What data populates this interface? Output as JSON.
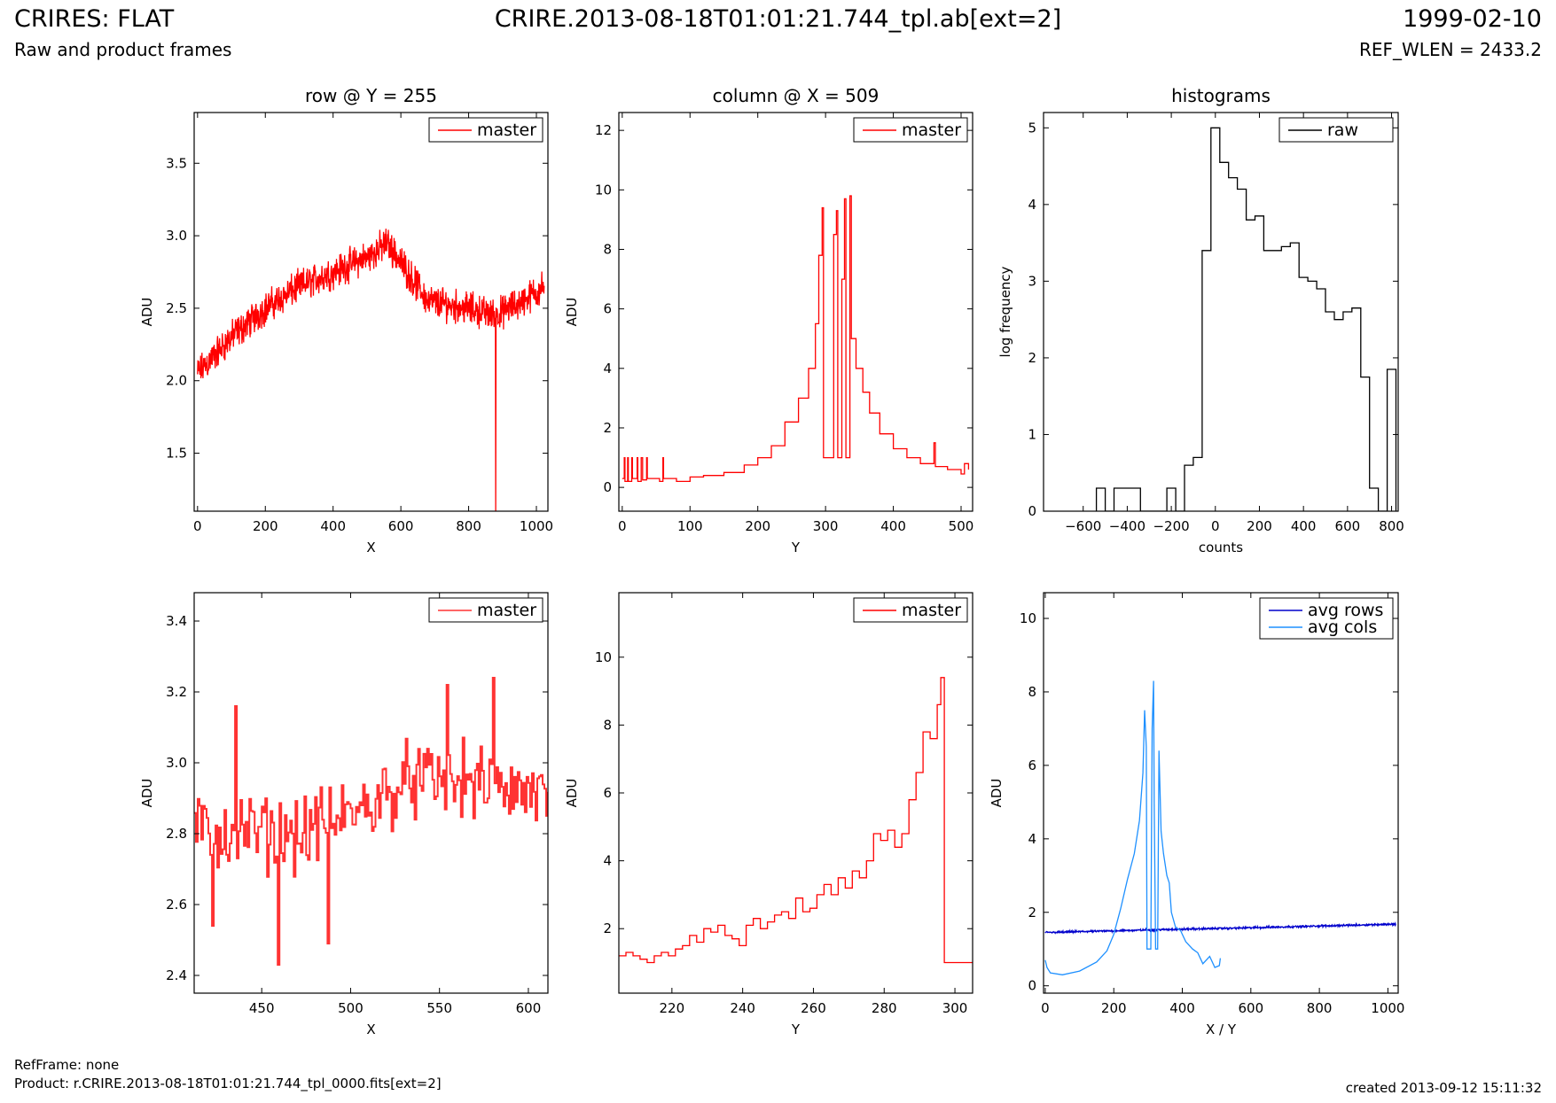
{
  "header": {
    "title": "CRIRES: FLAT",
    "subtitle": "Raw and product frames",
    "center_title": "CRIRE.2013-08-18T01:01:21.744_tpl.ab[ext=2]",
    "date": "1999-02-10",
    "ref_wlen": "REF_WLEN = 2433.2"
  },
  "footer": {
    "ref_frame": "RefFrame: none",
    "product": "Product: r.CRIRE.2013-08-18T01:01:21.744_tpl_0000.fits[ext=2]",
    "created": "created 2013-09-12 15:11:32"
  },
  "colors": {
    "red": "#ff0000",
    "light_red": "#ff3333",
    "black": "#000000",
    "blue": "#0000cc",
    "light_blue": "#1e90ff"
  },
  "chart_data": [
    {
      "id": "row",
      "type": "line",
      "title": "row @ Y = 255",
      "xlabel": "X",
      "ylabel": "ADU",
      "xlim": [
        -10,
        1034
      ],
      "ylim": [
        1.1,
        3.85
      ],
      "xticks": [
        0,
        200,
        400,
        600,
        800,
        1000
      ],
      "yticks": [
        1.5,
        2.0,
        2.5,
        3.0,
        3.5
      ],
      "ytick_labels": [
        "1.5",
        "2.0",
        "2.5",
        "3.0",
        "3.5"
      ],
      "legend": "top-right",
      "grid": false,
      "series": [
        {
          "name": "master",
          "color": "#ff0000",
          "step": false,
          "x_range": [
            0,
            1023
          ],
          "trend": [
            [
              0,
              2.05
            ],
            [
              100,
              2.3
            ],
            [
              200,
              2.5
            ],
            [
              300,
              2.65
            ],
            [
              400,
              2.75
            ],
            [
              500,
              2.85
            ],
            [
              560,
              2.95
            ],
            [
              620,
              2.75
            ],
            [
              680,
              2.55
            ],
            [
              800,
              2.5
            ],
            [
              880,
              2.45
            ],
            [
              960,
              2.55
            ],
            [
              1023,
              2.65
            ]
          ],
          "noise": 0.14,
          "spikes": [
            [
              880,
              1.1
            ]
          ]
        }
      ]
    },
    {
      "id": "column",
      "type": "line",
      "title": "column @ X = 509",
      "xlabel": "Y",
      "ylabel": "ADU",
      "xlim": [
        -5,
        517
      ],
      "ylim": [
        -0.8,
        12.6
      ],
      "xticks": [
        0,
        100,
        200,
        300,
        400,
        500
      ],
      "yticks": [
        0,
        2,
        4,
        6,
        8,
        10,
        12
      ],
      "ytick_labels": [
        "0",
        "2",
        "4",
        "6",
        "8",
        "10",
        "12"
      ],
      "legend": "top-right",
      "grid": false,
      "series": [
        {
          "name": "master",
          "color": "#ff0000",
          "step": true,
          "points": [
            [
              0,
              0.3
            ],
            [
              3,
              1.0
            ],
            [
              4,
              0.2
            ],
            [
              8,
              1.0
            ],
            [
              9,
              0.2
            ],
            [
              14,
              1.0
            ],
            [
              15,
              0.3
            ],
            [
              22,
              1.0
            ],
            [
              23,
              0.2
            ],
            [
              28,
              1.0
            ],
            [
              30,
              0.25
            ],
            [
              36,
              1.0
            ],
            [
              37,
              0.3
            ],
            [
              55,
              0.2
            ],
            [
              60,
              1.0
            ],
            [
              61,
              0.3
            ],
            [
              80,
              0.2
            ],
            [
              100,
              0.35
            ],
            [
              120,
              0.4
            ],
            [
              150,
              0.5
            ],
            [
              180,
              0.75
            ],
            [
              200,
              1.0
            ],
            [
              220,
              1.4
            ],
            [
              240,
              2.2
            ],
            [
              260,
              3.0
            ],
            [
              275,
              4.0
            ],
            [
              285,
              5.5
            ],
            [
              290,
              7.8
            ],
            [
              295,
              9.4
            ],
            [
              297,
              1.0
            ],
            [
              310,
              1.0
            ],
            [
              312,
              8.5
            ],
            [
              316,
              9.3
            ],
            [
              318,
              1.0
            ],
            [
              322,
              1.0
            ],
            [
              324,
              7.0
            ],
            [
              328,
              9.7
            ],
            [
              330,
              1.0
            ],
            [
              334,
              1.0
            ],
            [
              336,
              9.8
            ],
            [
              338,
              5.0
            ],
            [
              345,
              4.0
            ],
            [
              355,
              3.2
            ],
            [
              365,
              2.5
            ],
            [
              380,
              1.8
            ],
            [
              400,
              1.3
            ],
            [
              420,
              1.0
            ],
            [
              440,
              0.8
            ],
            [
              460,
              1.5
            ],
            [
              462,
              0.7
            ],
            [
              480,
              0.6
            ],
            [
              500,
              0.45
            ],
            [
              505,
              0.8
            ],
            [
              511,
              0.6
            ]
          ]
        }
      ]
    },
    {
      "id": "histograms",
      "type": "step",
      "title": "histograms",
      "xlabel": "counts",
      "ylabel": "log frequency",
      "xlim": [
        -780,
        830
      ],
      "ylim": [
        0,
        5.2
      ],
      "xticks": [
        -600,
        -400,
        -200,
        0,
        200,
        400,
        600,
        800
      ],
      "xtick_labels": [
        "−600",
        "−400",
        "−200",
        "0",
        "200",
        "400",
        "600",
        "800"
      ],
      "yticks": [
        0,
        1,
        2,
        3,
        4,
        5
      ],
      "ytick_labels": [
        "0",
        "1",
        "2",
        "3",
        "4",
        "5"
      ],
      "legend": "top-right",
      "grid": false,
      "series": [
        {
          "name": "raw",
          "color": "#000000",
          "bin_edges": [
            -540,
            -500,
            -460,
            -420,
            -380,
            -340,
            -300,
            -260,
            -220,
            -180,
            -140,
            -100,
            -60,
            -20,
            20,
            60,
            100,
            140,
            180,
            220,
            260,
            300,
            340,
            380,
            420,
            460,
            500,
            540,
            580,
            620,
            660,
            700,
            740,
            780,
            820
          ],
          "counts": [
            0.3,
            0.0,
            0.3,
            0.3,
            0.3,
            0.0,
            0.0,
            0.0,
            0.3,
            0.0,
            0.6,
            0.7,
            3.4,
            5.0,
            4.55,
            4.35,
            4.2,
            3.8,
            3.85,
            3.4,
            3.4,
            3.45,
            3.5,
            3.05,
            3.0,
            2.9,
            2.6,
            2.5,
            2.6,
            2.65,
            1.75,
            0.3,
            0.0,
            1.85
          ]
        }
      ]
    },
    {
      "id": "row_zoom",
      "type": "line",
      "title": "",
      "xlabel": "X",
      "ylabel": "ADU",
      "xlim": [
        412,
        611
      ],
      "ylim": [
        2.35,
        3.48
      ],
      "xticks": [
        450,
        500,
        550,
        600
      ],
      "yticks": [
        2.4,
        2.6,
        2.8,
        3.0,
        3.2,
        3.4
      ],
      "ytick_labels": [
        "2.4",
        "2.6",
        "2.8",
        "3.0",
        "3.2",
        "3.4"
      ],
      "legend": "top-right",
      "grid": false,
      "series": [
        {
          "name": "master",
          "color": "#ff3333",
          "step": true,
          "x_range": [
            412,
            611
          ],
          "trend": [
            [
              412,
              2.8
            ],
            [
              470,
              2.8
            ],
            [
              500,
              2.85
            ],
            [
              530,
              2.95
            ],
            [
              560,
              2.95
            ],
            [
              611,
              2.9
            ]
          ],
          "noise": 0.13,
          "spikes": [
            [
              459,
              2.43
            ],
            [
              487,
              2.49
            ],
            [
              422,
              2.54
            ],
            [
              435,
              3.16
            ],
            [
              580,
              3.24
            ],
            [
              554,
              3.22
            ]
          ]
        }
      ]
    },
    {
      "id": "column_zoom",
      "type": "line",
      "title": "",
      "xlabel": "Y",
      "ylabel": "ADU",
      "xlim": [
        205,
        305
      ],
      "ylim": [
        0.1,
        11.9
      ],
      "xticks": [
        220,
        240,
        260,
        280,
        300
      ],
      "yticks": [
        2,
        4,
        6,
        8,
        10
      ],
      "ytick_labels": [
        "2",
        "4",
        "6",
        "8",
        "10"
      ],
      "legend": "top-right",
      "grid": false,
      "series": [
        {
          "name": "master",
          "color": "#ff0000",
          "step": true,
          "points": [
            [
              205,
              1.2
            ],
            [
              207,
              1.3
            ],
            [
              209,
              1.2
            ],
            [
              211,
              1.1
            ],
            [
              213,
              1.0
            ],
            [
              215,
              1.2
            ],
            [
              217,
              1.3
            ],
            [
              219,
              1.2
            ],
            [
              221,
              1.4
            ],
            [
              223,
              1.5
            ],
            [
              225,
              1.8
            ],
            [
              227,
              1.6
            ],
            [
              229,
              2.0
            ],
            [
              231,
              1.9
            ],
            [
              233,
              2.1
            ],
            [
              235,
              1.8
            ],
            [
              237,
              1.7
            ],
            [
              239,
              1.5
            ],
            [
              241,
              2.1
            ],
            [
              243,
              2.3
            ],
            [
              245,
              2.0
            ],
            [
              247,
              2.2
            ],
            [
              249,
              2.4
            ],
            [
              251,
              2.5
            ],
            [
              253,
              2.3
            ],
            [
              255,
              2.9
            ],
            [
              257,
              2.5
            ],
            [
              259,
              2.6
            ],
            [
              261,
              3.0
            ],
            [
              263,
              3.3
            ],
            [
              265,
              3.0
            ],
            [
              267,
              3.5
            ],
            [
              269,
              3.2
            ],
            [
              271,
              3.7
            ],
            [
              273,
              3.5
            ],
            [
              275,
              4.0
            ],
            [
              277,
              4.8
            ],
            [
              279,
              4.6
            ],
            [
              281,
              4.9
            ],
            [
              283,
              4.4
            ],
            [
              285,
              4.8
            ],
            [
              287,
              5.8
            ],
            [
              289,
              6.6
            ],
            [
              291,
              7.8
            ],
            [
              293,
              7.6
            ],
            [
              295,
              8.6
            ],
            [
              296,
              9.4
            ],
            [
              297,
              1.0
            ],
            [
              305,
              1.0
            ]
          ]
        }
      ]
    },
    {
      "id": "averages",
      "type": "line",
      "title": "",
      "xlabel": "X / Y",
      "ylabel": "ADU",
      "xlim": [
        -5,
        1030
      ],
      "ylim": [
        -0.2,
        10.7
      ],
      "xticks": [
        0,
        200,
        400,
        600,
        800,
        1000
      ],
      "yticks": [
        0,
        2,
        4,
        6,
        8,
        10
      ],
      "ytick_labels": [
        "0",
        "2",
        "4",
        "6",
        "8",
        "10"
      ],
      "legend": "top-right",
      "grid": false,
      "series": [
        {
          "name": "avg rows",
          "color": "#0000cc",
          "step": false,
          "x_range": [
            0,
            1023
          ],
          "trend": [
            [
              0,
              1.45
            ],
            [
              300,
              1.52
            ],
            [
              600,
              1.58
            ],
            [
              1023,
              1.68
            ]
          ],
          "noise": 0.03
        },
        {
          "name": "avg cols",
          "color": "#1e90ff",
          "step": false,
          "points": [
            [
              0,
              0.7
            ],
            [
              5,
              0.5
            ],
            [
              15,
              0.35
            ],
            [
              50,
              0.3
            ],
            [
              100,
              0.4
            ],
            [
              150,
              0.65
            ],
            [
              180,
              0.95
            ],
            [
              200,
              1.4
            ],
            [
              220,
              2.1
            ],
            [
              240,
              2.9
            ],
            [
              260,
              3.6
            ],
            [
              275,
              4.5
            ],
            [
              285,
              5.8
            ],
            [
              290,
              7.5
            ],
            [
              295,
              6.5
            ],
            [
              297,
              1.0
            ],
            [
              308,
              1.0
            ],
            [
              312,
              7.0
            ],
            [
              316,
              8.3
            ],
            [
              318,
              5.0
            ],
            [
              322,
              1.0
            ],
            [
              328,
              1.0
            ],
            [
              332,
              6.4
            ],
            [
              338,
              4.2
            ],
            [
              345,
              3.6
            ],
            [
              355,
              3.0
            ],
            [
              362,
              2.8
            ],
            [
              368,
              2.0
            ],
            [
              380,
              1.6
            ],
            [
              395,
              1.5
            ],
            [
              410,
              1.2
            ],
            [
              430,
              1.0
            ],
            [
              445,
              0.9
            ],
            [
              460,
              0.6
            ],
            [
              480,
              0.8
            ],
            [
              495,
              0.5
            ],
            [
              508,
              0.55
            ],
            [
              511,
              0.75
            ]
          ]
        }
      ]
    }
  ]
}
